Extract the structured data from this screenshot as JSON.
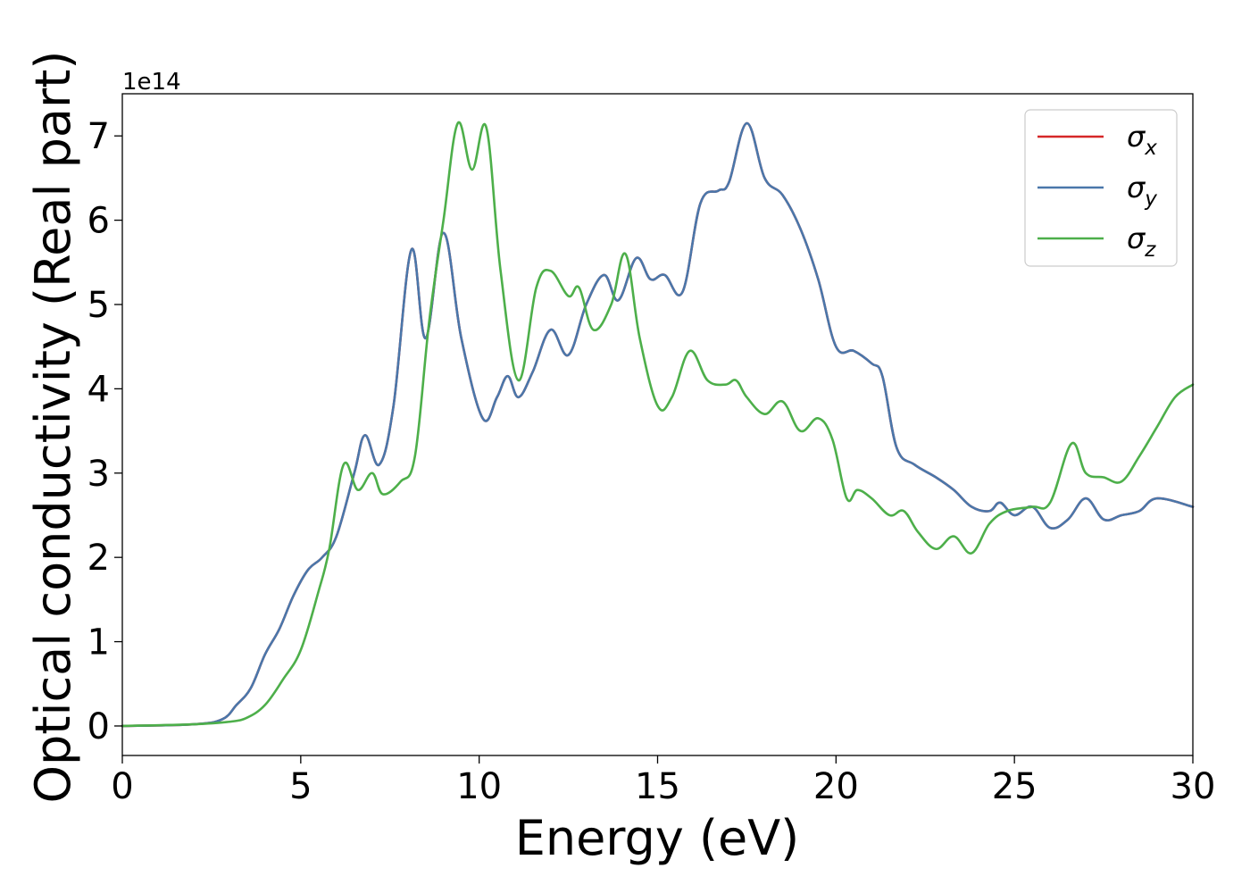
{
  "chart_data": {
    "type": "line",
    "xlabel": "Energy (eV)",
    "ylabel": "Optical conductivity (Real part)",
    "y_offset_label": "1e14",
    "y_scale": 100000000000000.0,
    "xlim": [
      0,
      30
    ],
    "ylim": [
      -0.35,
      7.5
    ],
    "x_ticks": [
      0,
      5,
      10,
      15,
      20,
      25,
      30
    ],
    "y_ticks": [
      0,
      1,
      2,
      3,
      4,
      5,
      6,
      7
    ],
    "grid": false,
    "legend_position": "top-right",
    "series": [
      {
        "name": "σx",
        "symbol": "σ",
        "subscript": "x",
        "color": "#d62728",
        "x": [
          0,
          2,
          2.8,
          3.2,
          3.6,
          4.0,
          4.4,
          4.8,
          5.2,
          5.6,
          6.0,
          6.5,
          6.8,
          7.2,
          7.6,
          8.1,
          8.5,
          9.0,
          9.5,
          10.1,
          10.5,
          10.8,
          11.1,
          11.5,
          12.0,
          12.5,
          13.0,
          13.5,
          13.9,
          14.4,
          14.8,
          15.2,
          15.7,
          16.2,
          16.7,
          17.0,
          17.5,
          18.0,
          18.5,
          19.0,
          19.5,
          20.0,
          20.5,
          21.0,
          21.3,
          21.7,
          22.2,
          22.8,
          23.3,
          23.8,
          24.3,
          24.6,
          25.0,
          25.5,
          26.0,
          26.5,
          27.0,
          27.5,
          28.0,
          28.5,
          29.0,
          30.0
        ],
        "y": [
          0.0,
          0.02,
          0.08,
          0.25,
          0.45,
          0.85,
          1.15,
          1.55,
          1.85,
          2.0,
          2.25,
          3.0,
          3.45,
          3.1,
          3.8,
          5.65,
          4.6,
          5.85,
          4.6,
          3.65,
          3.9,
          4.15,
          3.9,
          4.2,
          4.7,
          4.4,
          5.0,
          5.35,
          5.05,
          5.55,
          5.3,
          5.35,
          5.15,
          6.2,
          6.35,
          6.45,
          7.15,
          6.5,
          6.3,
          5.9,
          5.3,
          4.5,
          4.45,
          4.3,
          4.15,
          3.3,
          3.1,
          2.95,
          2.8,
          2.6,
          2.55,
          2.65,
          2.5,
          2.6,
          2.35,
          2.45,
          2.7,
          2.45,
          2.5,
          2.55,
          2.7,
          2.6
        ]
      },
      {
        "name": "σy",
        "symbol": "σ",
        "subscript": "y",
        "color": "#4a77aa",
        "x": [
          0,
          2,
          2.8,
          3.2,
          3.6,
          4.0,
          4.4,
          4.8,
          5.2,
          5.6,
          6.0,
          6.5,
          6.8,
          7.2,
          7.6,
          8.1,
          8.5,
          9.0,
          9.5,
          10.1,
          10.5,
          10.8,
          11.1,
          11.5,
          12.0,
          12.5,
          13.0,
          13.5,
          13.9,
          14.4,
          14.8,
          15.2,
          15.7,
          16.2,
          16.7,
          17.0,
          17.5,
          18.0,
          18.5,
          19.0,
          19.5,
          20.0,
          20.5,
          21.0,
          21.3,
          21.7,
          22.2,
          22.8,
          23.3,
          23.8,
          24.3,
          24.6,
          25.0,
          25.5,
          26.0,
          26.5,
          27.0,
          27.5,
          28.0,
          28.5,
          29.0,
          30.0
        ],
        "y": [
          0.0,
          0.02,
          0.08,
          0.25,
          0.45,
          0.85,
          1.15,
          1.55,
          1.85,
          2.0,
          2.25,
          3.0,
          3.45,
          3.1,
          3.8,
          5.65,
          4.6,
          5.85,
          4.6,
          3.65,
          3.9,
          4.15,
          3.9,
          4.2,
          4.7,
          4.4,
          5.0,
          5.35,
          5.05,
          5.55,
          5.3,
          5.35,
          5.15,
          6.2,
          6.35,
          6.45,
          7.15,
          6.5,
          6.3,
          5.9,
          5.3,
          4.5,
          4.45,
          4.3,
          4.15,
          3.3,
          3.1,
          2.95,
          2.8,
          2.6,
          2.55,
          2.65,
          2.5,
          2.6,
          2.35,
          2.45,
          2.7,
          2.45,
          2.5,
          2.55,
          2.7,
          2.6
        ]
      },
      {
        "name": "σz",
        "symbol": "σ",
        "subscript": "z",
        "color": "#4daf4a",
        "x": [
          0,
          2,
          3.0,
          3.5,
          4.0,
          4.5,
          5.0,
          5.5,
          5.8,
          6.2,
          6.6,
          7.0,
          7.3,
          7.8,
          8.2,
          8.6,
          9.0,
          9.4,
          9.8,
          10.2,
          10.6,
          11.1,
          11.6,
          12.0,
          12.5,
          12.8,
          13.2,
          13.7,
          14.1,
          14.5,
          15.0,
          15.4,
          15.9,
          16.4,
          16.9,
          17.2,
          17.5,
          18.0,
          18.5,
          19.0,
          19.5,
          19.9,
          20.3,
          20.6,
          21.0,
          21.5,
          21.9,
          22.3,
          22.8,
          23.3,
          23.8,
          24.3,
          24.8,
          25.5,
          26.0,
          26.6,
          27.0,
          27.5,
          28.0,
          28.5,
          29.0,
          29.5,
          30.0
        ],
        "y": [
          0.0,
          0.02,
          0.05,
          0.1,
          0.25,
          0.55,
          0.9,
          1.6,
          2.1,
          3.1,
          2.8,
          3.0,
          2.75,
          2.9,
          3.2,
          4.8,
          6.0,
          7.15,
          6.6,
          7.1,
          5.4,
          4.1,
          5.2,
          5.4,
          5.1,
          5.2,
          4.7,
          5.0,
          5.6,
          4.6,
          3.8,
          3.9,
          4.45,
          4.1,
          4.05,
          4.1,
          3.9,
          3.7,
          3.85,
          3.5,
          3.65,
          3.4,
          2.7,
          2.8,
          2.7,
          2.5,
          2.55,
          2.3,
          2.1,
          2.25,
          2.05,
          2.4,
          2.55,
          2.6,
          2.65,
          3.35,
          3.0,
          2.95,
          2.9,
          3.2,
          3.55,
          3.9,
          4.05
        ]
      }
    ]
  }
}
